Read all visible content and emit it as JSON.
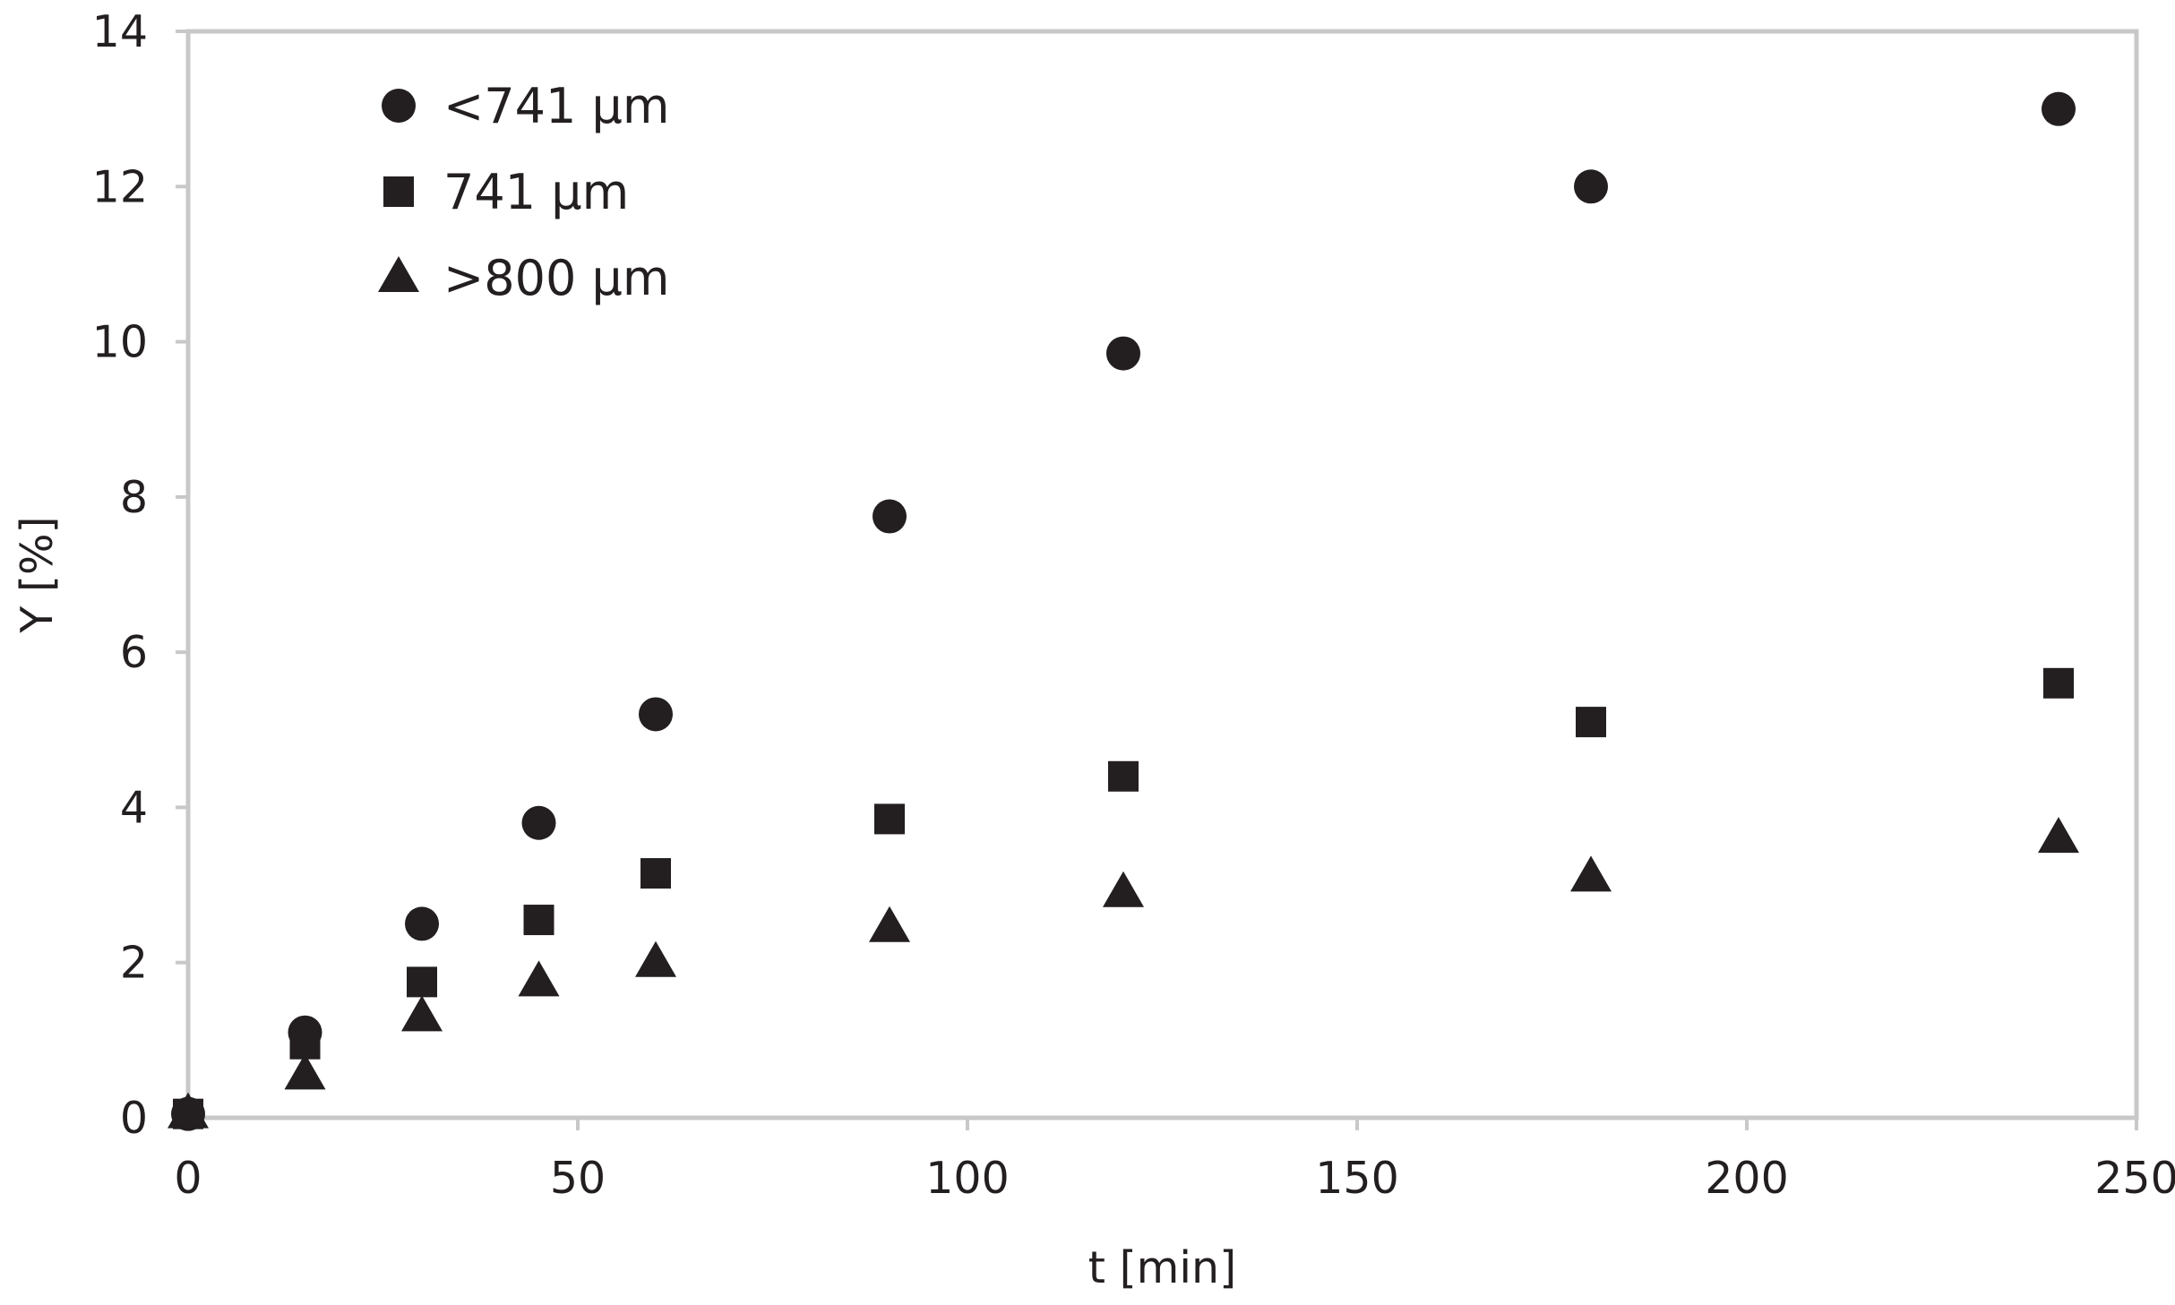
{
  "chart_data": {
    "type": "scatter",
    "title": "",
    "xlabel": "t [min]",
    "ylabel": "Y [%]",
    "xlim": [
      0,
      250
    ],
    "ylim": [
      0,
      14
    ],
    "xticks": [
      0,
      50,
      100,
      150,
      200,
      250
    ],
    "yticks": [
      0,
      2,
      4,
      6,
      8,
      10,
      12,
      14
    ],
    "xtick_labels": [
      "0",
      "50",
      "100",
      "150",
      "200",
      "250"
    ],
    "ytick_labels": [
      "0",
      "2",
      "4",
      "6",
      "8",
      "10",
      "12",
      "14"
    ],
    "grid": false,
    "legend_position": "top-left",
    "frame_color": "#c8c8c8",
    "marker_color": "#231f20",
    "series": [
      {
        "name": "<741 µm",
        "marker": "circle",
        "x": [
          0,
          15,
          30,
          45,
          60,
          90,
          120,
          180,
          240
        ],
        "y": [
          0.05,
          1.1,
          2.5,
          3.8,
          5.2,
          7.75,
          9.85,
          12.0,
          13.0
        ]
      },
      {
        "name": "741 µm",
        "marker": "square",
        "x": [
          0,
          15,
          30,
          45,
          60,
          90,
          120,
          180,
          240
        ],
        "y": [
          0.05,
          0.95,
          1.75,
          2.55,
          3.15,
          3.85,
          4.4,
          5.1,
          5.6
        ]
      },
      {
        "name": ">800 µm",
        "marker": "triangle",
        "x": [
          0,
          15,
          30,
          45,
          60,
          90,
          120,
          180,
          240
        ],
        "y": [
          0.05,
          0.55,
          1.3,
          1.75,
          2.0,
          2.45,
          2.9,
          3.1,
          3.6
        ]
      }
    ]
  }
}
